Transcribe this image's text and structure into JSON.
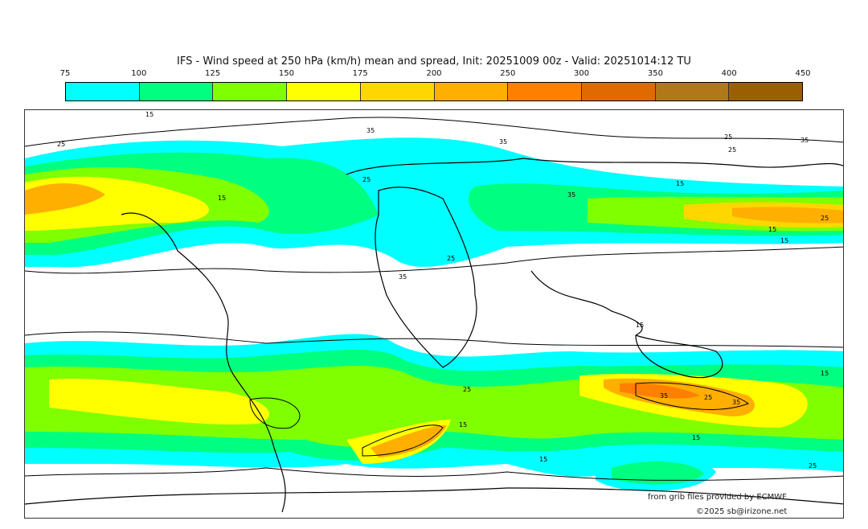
{
  "title": "IFS - Wind speed at 250 hPa (km/h) mean and spread, Init: 20251009 00z - Valid: 20251014:12 TU",
  "colorbar": {
    "ticks": [
      "75",
      "100",
      "125",
      "150",
      "175",
      "200",
      "250",
      "300",
      "350",
      "400",
      "450"
    ],
    "colors": [
      "#00ffff",
      "#00ff80",
      "#80ff00",
      "#ffff00",
      "#ffd700",
      "#ffaf00",
      "#ff8000",
      "#e06a00",
      "#b07818",
      "#9a5f00"
    ]
  },
  "contour_labels": [
    "15",
    "25",
    "35",
    "15",
    "25",
    "35",
    "25",
    "15",
    "35",
    "25",
    "15",
    "25",
    "35",
    "15",
    "25",
    "35",
    "25",
    "15",
    "35",
    "25",
    "15",
    "35",
    "15",
    "25",
    "15",
    "15"
  ],
  "credits": {
    "source": "from grib files provided by ECMWF",
    "copyright": "©2025 sb@irizone.net"
  }
}
